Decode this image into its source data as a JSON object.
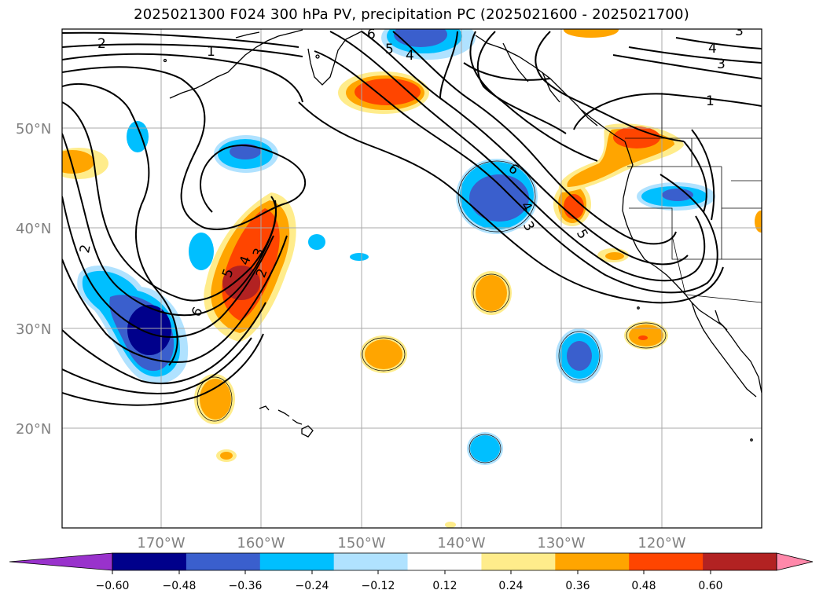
{
  "title": "2025021300 F024 300 hPa PV, precipitation PC (2025021600 - 2025021700)",
  "map": {
    "lon_ticks": [
      "170°W",
      "160°W",
      "150°W",
      "140°W",
      "130°W",
      "120°W"
    ],
    "lat_ticks": [
      "50°N",
      "40°N",
      "30°N",
      "20°N"
    ],
    "pv_contour_labels": [
      "2",
      "1",
      "6",
      "5",
      "4",
      "3",
      "4",
      "3",
      "1",
      "2",
      "5",
      "4",
      "3",
      "2",
      "6",
      "6",
      "4",
      "3",
      "5"
    ]
  },
  "colorbar": {
    "tick_labels": [
      "−0.60",
      "−0.48",
      "−0.36",
      "−0.24",
      "−0.12",
      "0.12",
      "0.24",
      "0.36",
      "0.48",
      "0.60"
    ],
    "colors": [
      "#9932cc",
      "#00008b",
      "#3a5fcd",
      "#00bfff",
      "#b0e2ff",
      "#ffffff",
      "#ffec8b",
      "#ffa500",
      "#ff4500",
      "#b22222",
      "#ff88aa"
    ]
  },
  "colors": {
    "neg_strong": "#00008b",
    "neg_med": "#3a5fcd",
    "neg": "#00bfff",
    "neg_weak": "#b0e2ff",
    "pos_weak": "#ffec8b",
    "pos": "#ffa500",
    "pos_med": "#ff4500",
    "pos_strong": "#b22222"
  }
}
